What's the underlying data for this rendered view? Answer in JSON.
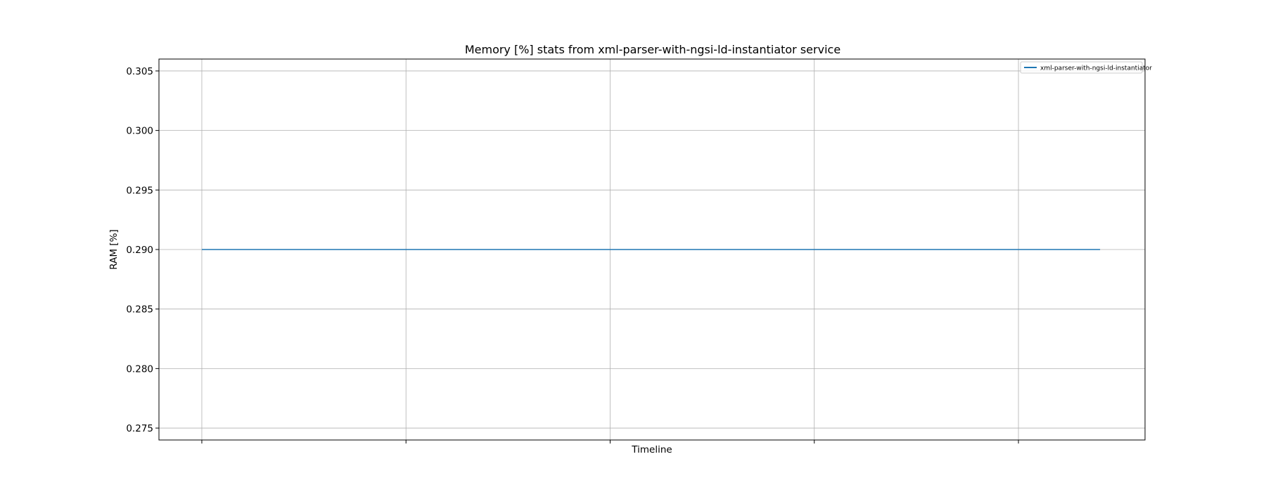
{
  "chart_data": {
    "type": "line",
    "title": "Memory [%] stats from xml-parser-with-ngsi-ld-instantiator service",
    "xlabel": "Timeline",
    "ylabel": "RAM [%]",
    "ylim": [
      0.274,
      0.306
    ],
    "yticks": [
      0.275,
      0.28,
      0.285,
      0.29,
      0.295,
      0.3,
      0.305
    ],
    "ytick_labels": [
      "0.275",
      "0.280",
      "0.285",
      "0.290",
      "0.295",
      "0.300",
      "0.305"
    ],
    "xticks_count": 5,
    "grid": true,
    "legend_position": "top-right",
    "series": [
      {
        "name": "xml-parser-with-ngsi-ld-instantiator",
        "color": "#1f77b4",
        "x": [
          0,
          1,
          2,
          3,
          4,
          4.4
        ],
        "values": [
          0.29,
          0.29,
          0.29,
          0.29,
          0.29,
          0.29
        ]
      }
    ],
    "xlim": [
      -0.21,
      4.62
    ]
  }
}
